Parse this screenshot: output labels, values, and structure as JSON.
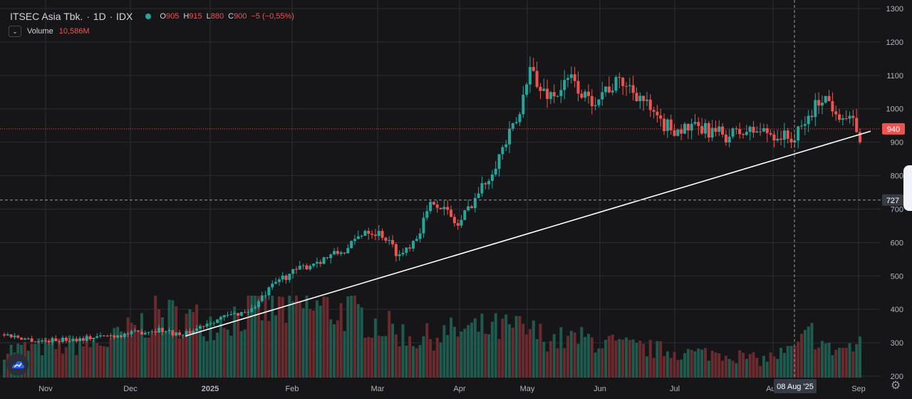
{
  "header": {
    "symbol": "ITSEC Asia Tbk.",
    "interval": "1D",
    "exchange": "IDX",
    "ohlc": [
      {
        "key": "O",
        "value": "905"
      },
      {
        "key": "H",
        "value": "915"
      },
      {
        "key": "L",
        "value": "880"
      },
      {
        "key": "C",
        "value": "900"
      }
    ],
    "change": "−5 (−0,55%)",
    "volume_label": "Volume",
    "volume_value": "10,586M"
  },
  "colors": {
    "up": "#26a69a",
    "down": "#ef5350",
    "background": "#161619",
    "trendline": "#ffffff"
  },
  "icons": [
    "chevron-down-icon",
    "logo-icon",
    "gear-icon"
  ],
  "chart_data": {
    "type": "candlestick",
    "ylim": [
      200,
      1300
    ],
    "y_ticks": [
      200,
      300,
      400,
      500,
      600,
      700,
      800,
      900,
      1000,
      1100,
      1200,
      1300
    ],
    "x_labels": [
      "Nov",
      "Dec",
      "2025",
      "Feb",
      "Mar",
      "Apr",
      "May",
      "Jun",
      "Jul",
      "Aug",
      "Sep"
    ],
    "crosshair_date": "08 Aug '25",
    "crosshair_value": 727,
    "last_price": 940,
    "trendline": [
      {
        "date": "Dec 2024",
        "value": 320
      },
      {
        "date": "Sep 2025",
        "value": 933
      }
    ],
    "grid": true,
    "price_anchors": [
      [
        0,
        325
      ],
      [
        10,
        305
      ],
      [
        22,
        312
      ],
      [
        35,
        325
      ],
      [
        45,
        340
      ],
      [
        52,
        322
      ],
      [
        60,
        365
      ],
      [
        72,
        400
      ],
      [
        80,
        490
      ],
      [
        90,
        540
      ],
      [
        100,
        580
      ],
      [
        105,
        640
      ],
      [
        110,
        625
      ],
      [
        115,
        560
      ],
      [
        120,
        620
      ],
      [
        125,
        730
      ],
      [
        128,
        700
      ],
      [
        132,
        650
      ],
      [
        136,
        720
      ],
      [
        140,
        780
      ],
      [
        145,
        880
      ],
      [
        150,
        980
      ],
      [
        153,
        1150
      ],
      [
        155,
        1060
      ],
      [
        160,
        1040
      ],
      [
        165,
        1090
      ],
      [
        170,
        1020
      ],
      [
        175,
        1060
      ],
      [
        180,
        1080
      ],
      [
        185,
        1040
      ],
      [
        190,
        960
      ],
      [
        195,
        940
      ],
      [
        200,
        940
      ],
      [
        205,
        935
      ],
      [
        210,
        920
      ],
      [
        215,
        930
      ],
      [
        220,
        935
      ],
      [
        225,
        920
      ],
      [
        230,
        910
      ],
      [
        235,
        990
      ],
      [
        238,
        1040
      ],
      [
        242,
        1000
      ],
      [
        246,
        960
      ],
      [
        249,
        940
      ]
    ],
    "volume_anchors": [
      [
        0,
        0.4
      ],
      [
        30,
        0.5
      ],
      [
        45,
        0.9
      ],
      [
        60,
        0.8
      ],
      [
        75,
        1.0
      ],
      [
        90,
        1.0
      ],
      [
        100,
        0.95
      ],
      [
        110,
        0.75
      ],
      [
        120,
        0.55
      ],
      [
        130,
        0.65
      ],
      [
        140,
        0.7
      ],
      [
        150,
        0.7
      ],
      [
        160,
        0.55
      ],
      [
        170,
        0.55
      ],
      [
        180,
        0.45
      ],
      [
        190,
        0.4
      ],
      [
        200,
        0.35
      ],
      [
        210,
        0.35
      ],
      [
        220,
        0.25
      ],
      [
        230,
        0.4
      ],
      [
        235,
        0.65
      ],
      [
        240,
        0.4
      ],
      [
        249,
        0.45
      ]
    ]
  }
}
